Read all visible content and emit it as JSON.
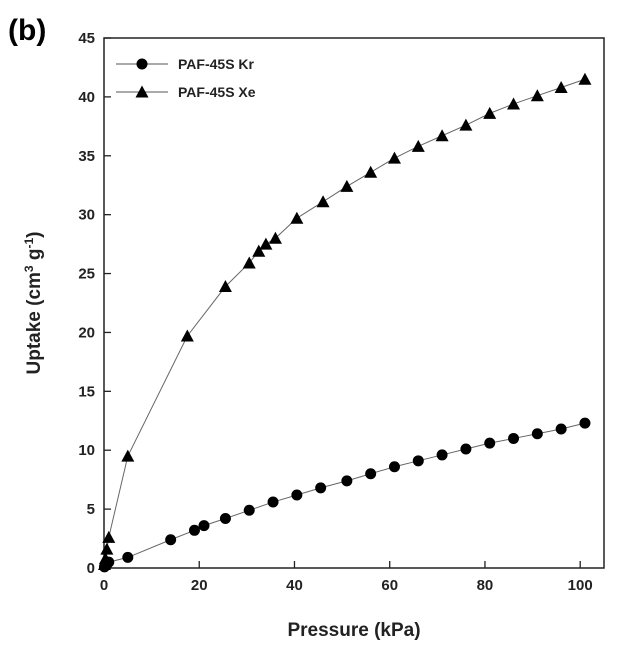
{
  "panel_label": "(b)",
  "chart_data": {
    "type": "line",
    "xlabel": "Pressure (kPa)",
    "ylabel_main": "Uptake (cm",
    "ylabel_sup1": "3",
    "ylabel_mid": " g",
    "ylabel_sup2": "-1",
    "ylabel_end": ")",
    "xlim": [
      0,
      105
    ],
    "ylim": [
      0,
      45
    ],
    "xticks": [
      0,
      20,
      40,
      60,
      80,
      100
    ],
    "yticks": [
      0,
      5,
      10,
      15,
      20,
      25,
      30,
      35,
      40,
      45
    ],
    "legend_position": "top-left",
    "grid": false,
    "series": [
      {
        "name": "PAF-45S Kr",
        "marker": "circle",
        "color": "#000000",
        "x": [
          0.1,
          0.3,
          0.6,
          1,
          5,
          14,
          19,
          21,
          25.5,
          30.5,
          35.5,
          40.5,
          45.5,
          51,
          56,
          61,
          66,
          71,
          76,
          81,
          86,
          91,
          96,
          101
        ],
        "y": [
          0.1,
          0.2,
          0.3,
          0.5,
          0.9,
          2.4,
          3.2,
          3.6,
          4.2,
          4.9,
          5.6,
          6.2,
          6.8,
          7.4,
          8.0,
          8.6,
          9.1,
          9.6,
          10.1,
          10.6,
          11.0,
          11.4,
          11.8,
          12.3
        ]
      },
      {
        "name": "PAF-45S Xe",
        "marker": "triangle",
        "color": "#000000",
        "x": [
          0.1,
          0.3,
          0.6,
          1,
          5,
          17.5,
          25.5,
          30.5,
          32.5,
          34,
          36,
          40.5,
          46,
          51,
          56,
          61,
          66,
          71,
          76,
          81,
          86,
          91,
          96,
          101
        ],
        "y": [
          0.3,
          0.8,
          1.6,
          2.6,
          9.5,
          19.7,
          23.9,
          25.9,
          26.9,
          27.5,
          28.0,
          29.7,
          31.1,
          32.4,
          33.6,
          34.8,
          35.8,
          36.7,
          37.6,
          38.6,
          39.4,
          40.1,
          40.8,
          41.5
        ]
      }
    ]
  }
}
